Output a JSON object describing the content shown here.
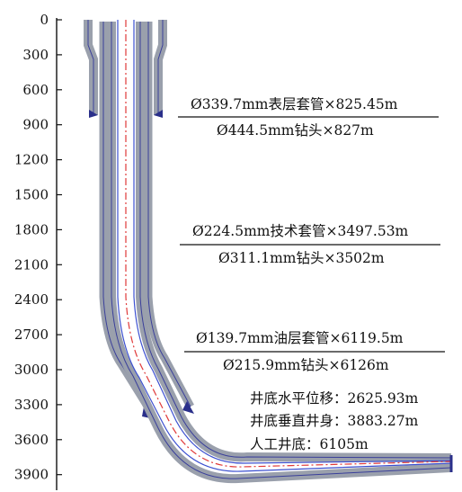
{
  "depth_axis": {
    "ticks": [
      "0",
      "300",
      "600",
      "900",
      "1200",
      "1500",
      "1800",
      "2100",
      "2400",
      "2700",
      "3000",
      "3300",
      "3600",
      "3900"
    ]
  },
  "casing_program": [
    {
      "casing": "Ø339.7mm表层套管×825.45m",
      "bit": "Ø444.5mm钻头×827m"
    },
    {
      "casing": "Ø224.5mm技术套管×3497.53m",
      "bit": "Ø311.1mm钻头×3502m"
    },
    {
      "casing": "Ø139.7mm油层套管×6119.5m",
      "bit": "Ø215.9mm钻头×6126m"
    }
  ],
  "well_summary": [
    "井底水平位移：2625.93m",
    "井底垂直井身：3883.27m",
    "人工井底：6105m"
  ],
  "colors": {
    "casing_fill": "#9aa0ac",
    "casing_edge": "#3a3f9a",
    "pipe_line": "#3b4fd0",
    "centerline": "#e03a3a",
    "shoe": "#2a2f8a"
  }
}
